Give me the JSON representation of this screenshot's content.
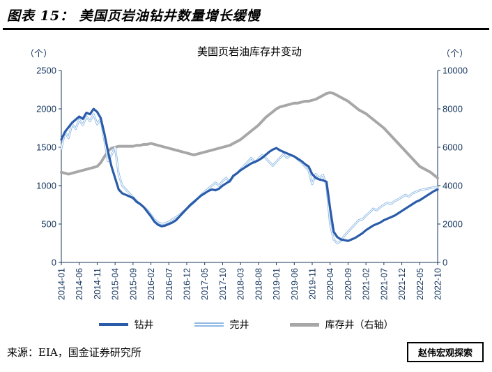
{
  "header": {
    "title": "图表 15：  美国页岩油钻井数量增长缓慢"
  },
  "chart": {
    "title": "美国页岩油库存井变动",
    "left_unit": "（个）",
    "right_unit": "（个）",
    "axis_color": "#17375E",
    "title_color": "#000000"
  },
  "legend": [
    {
      "label": "钻井",
      "color": "#2A5CAA",
      "style": "thick"
    },
    {
      "label": "完井",
      "color": "#8FB9E4",
      "style": "double"
    },
    {
      "label": "库存井（右轴）",
      "color": "#A7A7A7",
      "style": "thick"
    }
  ],
  "footer": {
    "source": "来源：EIA，国金证券研究所",
    "watermark": "赵伟宏观探索"
  },
  "chart_data": {
    "type": "line",
    "title": "美国页岩油库存井变动",
    "grid": false,
    "legend_position": "bottom",
    "left_axis": {
      "min": 0,
      "max": 2500,
      "step": 500,
      "unit": "（个）"
    },
    "right_axis": {
      "min": 0,
      "max": 10000,
      "step": 2000,
      "unit": "（个）"
    },
    "x_label_ticks": [
      "2014-01",
      "2014-06",
      "2014-11",
      "2015-04",
      "2015-09",
      "2016-02",
      "2016-07",
      "2016-12",
      "2017-05",
      "2017-10",
      "2018-03",
      "2018-08",
      "2019-01",
      "2019-06",
      "2019-11",
      "2020-04",
      "2020-09",
      "2021-02",
      "2021-07",
      "2021-12",
      "2022-05",
      "2022-10"
    ],
    "x": [
      "2014-01",
      "2014-02",
      "2014-03",
      "2014-04",
      "2014-05",
      "2014-06",
      "2014-07",
      "2014-08",
      "2014-09",
      "2014-10",
      "2014-11",
      "2014-12",
      "2015-01",
      "2015-02",
      "2015-03",
      "2015-04",
      "2015-05",
      "2015-06",
      "2015-07",
      "2015-08",
      "2015-09",
      "2015-10",
      "2015-11",
      "2015-12",
      "2016-01",
      "2016-02",
      "2016-03",
      "2016-04",
      "2016-05",
      "2016-06",
      "2016-07",
      "2016-08",
      "2016-09",
      "2016-10",
      "2016-11",
      "2016-12",
      "2017-01",
      "2017-02",
      "2017-03",
      "2017-04",
      "2017-05",
      "2017-06",
      "2017-07",
      "2017-08",
      "2017-09",
      "2017-10",
      "2017-11",
      "2017-12",
      "2018-01",
      "2018-02",
      "2018-03",
      "2018-04",
      "2018-05",
      "2018-06",
      "2018-07",
      "2018-08",
      "2018-09",
      "2018-10",
      "2018-11",
      "2018-12",
      "2019-01",
      "2019-02",
      "2019-03",
      "2019-04",
      "2019-05",
      "2019-06",
      "2019-07",
      "2019-08",
      "2019-09",
      "2019-10",
      "2019-11",
      "2019-12",
      "2020-01",
      "2020-02",
      "2020-03",
      "2020-04",
      "2020-05",
      "2020-06",
      "2020-07",
      "2020-08",
      "2020-09",
      "2020-10",
      "2020-11",
      "2020-12",
      "2021-01",
      "2021-02",
      "2021-03",
      "2021-04",
      "2021-05",
      "2021-06",
      "2021-07",
      "2021-08",
      "2021-09",
      "2021-10",
      "2021-11",
      "2021-12",
      "2022-01",
      "2022-02",
      "2022-03",
      "2022-04",
      "2022-05",
      "2022-06",
      "2022-07",
      "2022-08",
      "2022-09",
      "2022-10"
    ],
    "series": [
      {
        "name": "钻井",
        "axis": "left",
        "color": "#2A5CAA",
        "width": 3.2,
        "style": "solid",
        "values": [
          1600,
          1700,
          1760,
          1820,
          1860,
          1900,
          1870,
          1950,
          1930,
          2000,
          1960,
          1880,
          1680,
          1450,
          1250,
          1100,
          950,
          900,
          880,
          860,
          840,
          790,
          760,
          720,
          660,
          600,
          530,
          490,
          470,
          480,
          500,
          520,
          550,
          600,
          650,
          700,
          750,
          790,
          830,
          870,
          900,
          930,
          950,
          940,
          960,
          1000,
          1030,
          1060,
          1130,
          1160,
          1200,
          1230,
          1260,
          1290,
          1310,
          1330,
          1360,
          1400,
          1440,
          1470,
          1490,
          1460,
          1440,
          1420,
          1400,
          1380,
          1350,
          1320,
          1280,
          1250,
          1150,
          1100,
          1080,
          1070,
          1050,
          700,
          400,
          330,
          300,
          290,
          280,
          300,
          320,
          350,
          380,
          420,
          450,
          480,
          500,
          520,
          550,
          570,
          590,
          610,
          640,
          670,
          700,
          730,
          760,
          790,
          810,
          840,
          870,
          900,
          930,
          950
        ]
      },
      {
        "name": "完井",
        "axis": "left",
        "color": "#8FB9E4",
        "width": 3,
        "style": "double",
        "values": [
          1480,
          1700,
          1620,
          1800,
          1740,
          1860,
          1790,
          1900,
          1840,
          1930,
          1800,
          1870,
          1600,
          1320,
          1400,
          1500,
          1150,
          1000,
          950,
          900,
          850,
          800,
          760,
          720,
          680,
          620,
          560,
          520,
          500,
          510,
          530,
          560,
          590,
          620,
          660,
          700,
          740,
          780,
          830,
          880,
          920,
          960,
          1000,
          1040,
          1000,
          1060,
          1100,
          1050,
          1120,
          1160,
          1210,
          1260,
          1310,
          1360,
          1300,
          1350,
          1400,
          1360,
          1310,
          1260,
          1310,
          1360,
          1410,
          1360,
          1400,
          1380,
          1340,
          1300,
          1250,
          1200,
          1020,
          1150,
          1100,
          1140,
          1000,
          500,
          300,
          250,
          280,
          350,
          400,
          450,
          500,
          550,
          560,
          610,
          650,
          700,
          680,
          720,
          750,
          780,
          760,
          800,
          820,
          850,
          880,
          860,
          900,
          920,
          940,
          950,
          960,
          970,
          980,
          980
        ]
      },
      {
        "name": "库存井（右轴）",
        "axis": "right",
        "color": "#A7A7A7",
        "width": 4,
        "style": "solid",
        "values": [
          4700,
          4650,
          4600,
          4650,
          4700,
          4750,
          4800,
          4850,
          4900,
          4950,
          5000,
          5200,
          5500,
          5800,
          5950,
          6000,
          6050,
          6050,
          6050,
          6050,
          6050,
          6100,
          6100,
          6150,
          6150,
          6200,
          6150,
          6100,
          6050,
          6000,
          5950,
          5900,
          5850,
          5800,
          5750,
          5700,
          5650,
          5600,
          5650,
          5700,
          5750,
          5800,
          5850,
          5900,
          5950,
          6000,
          6050,
          6100,
          6200,
          6300,
          6400,
          6550,
          6700,
          6850,
          7000,
          7150,
          7350,
          7550,
          7700,
          7850,
          8000,
          8100,
          8150,
          8200,
          8250,
          8300,
          8300,
          8350,
          8400,
          8400,
          8450,
          8500,
          8600,
          8700,
          8800,
          8850,
          8800,
          8700,
          8600,
          8500,
          8400,
          8250,
          8100,
          7950,
          7850,
          7750,
          7600,
          7450,
          7300,
          7150,
          7000,
          6800,
          6600,
          6400,
          6200,
          6000,
          5800,
          5600,
          5400,
          5200,
          5000,
          4900,
          4800,
          4700,
          4550,
          4400
        ]
      }
    ]
  }
}
